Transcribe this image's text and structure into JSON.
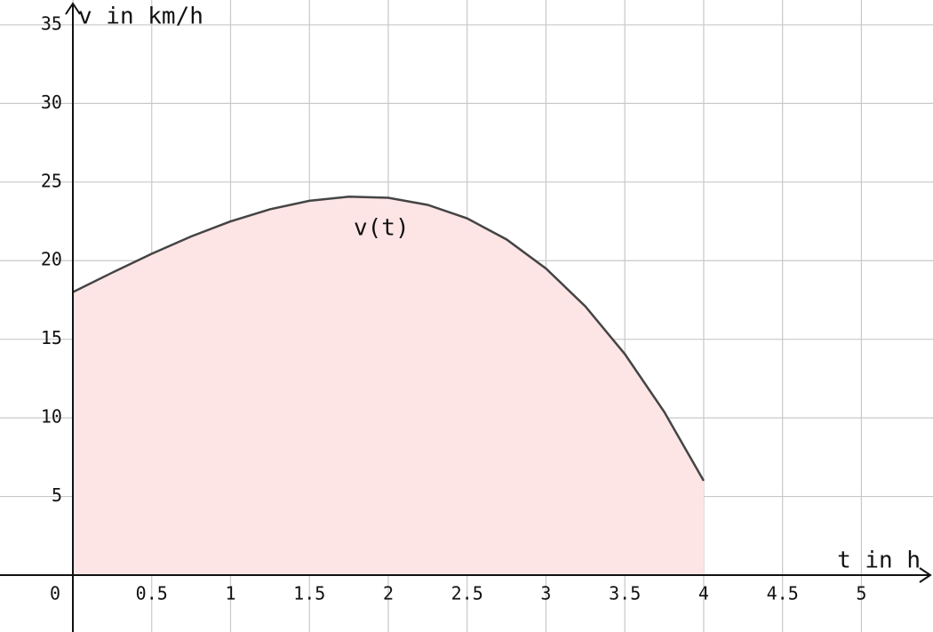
{
  "chart_data": {
    "type": "area",
    "x_label": "t in h",
    "y_label": "v in km/h",
    "x": [
      0,
      0.25,
      0.5,
      0.75,
      1,
      1.25,
      1.5,
      1.75,
      2,
      2.25,
      2.5,
      2.75,
      3,
      3.25,
      3.5,
      3.75,
      4
    ],
    "series": [
      {
        "name": "v(t)",
        "color": "#444444",
        "fill": "#fde4e5",
        "values": [
          18,
          19.24,
          20.44,
          21.54,
          22.5,
          23.27,
          23.81,
          24.07,
          24,
          23.55,
          22.69,
          21.35,
          19.5,
          17.09,
          14.06,
          10.38,
          6
        ]
      }
    ],
    "xlim": [
      -0.462,
      5.454
    ],
    "ylim": [
      -3.62,
      36.58
    ],
    "xticks": [
      0,
      0.5,
      1,
      1.5,
      2,
      2.5,
      3,
      3.5,
      4,
      4.5,
      5
    ],
    "yticks": [
      5,
      10,
      15,
      20,
      25,
      30,
      35
    ],
    "grid": true
  }
}
